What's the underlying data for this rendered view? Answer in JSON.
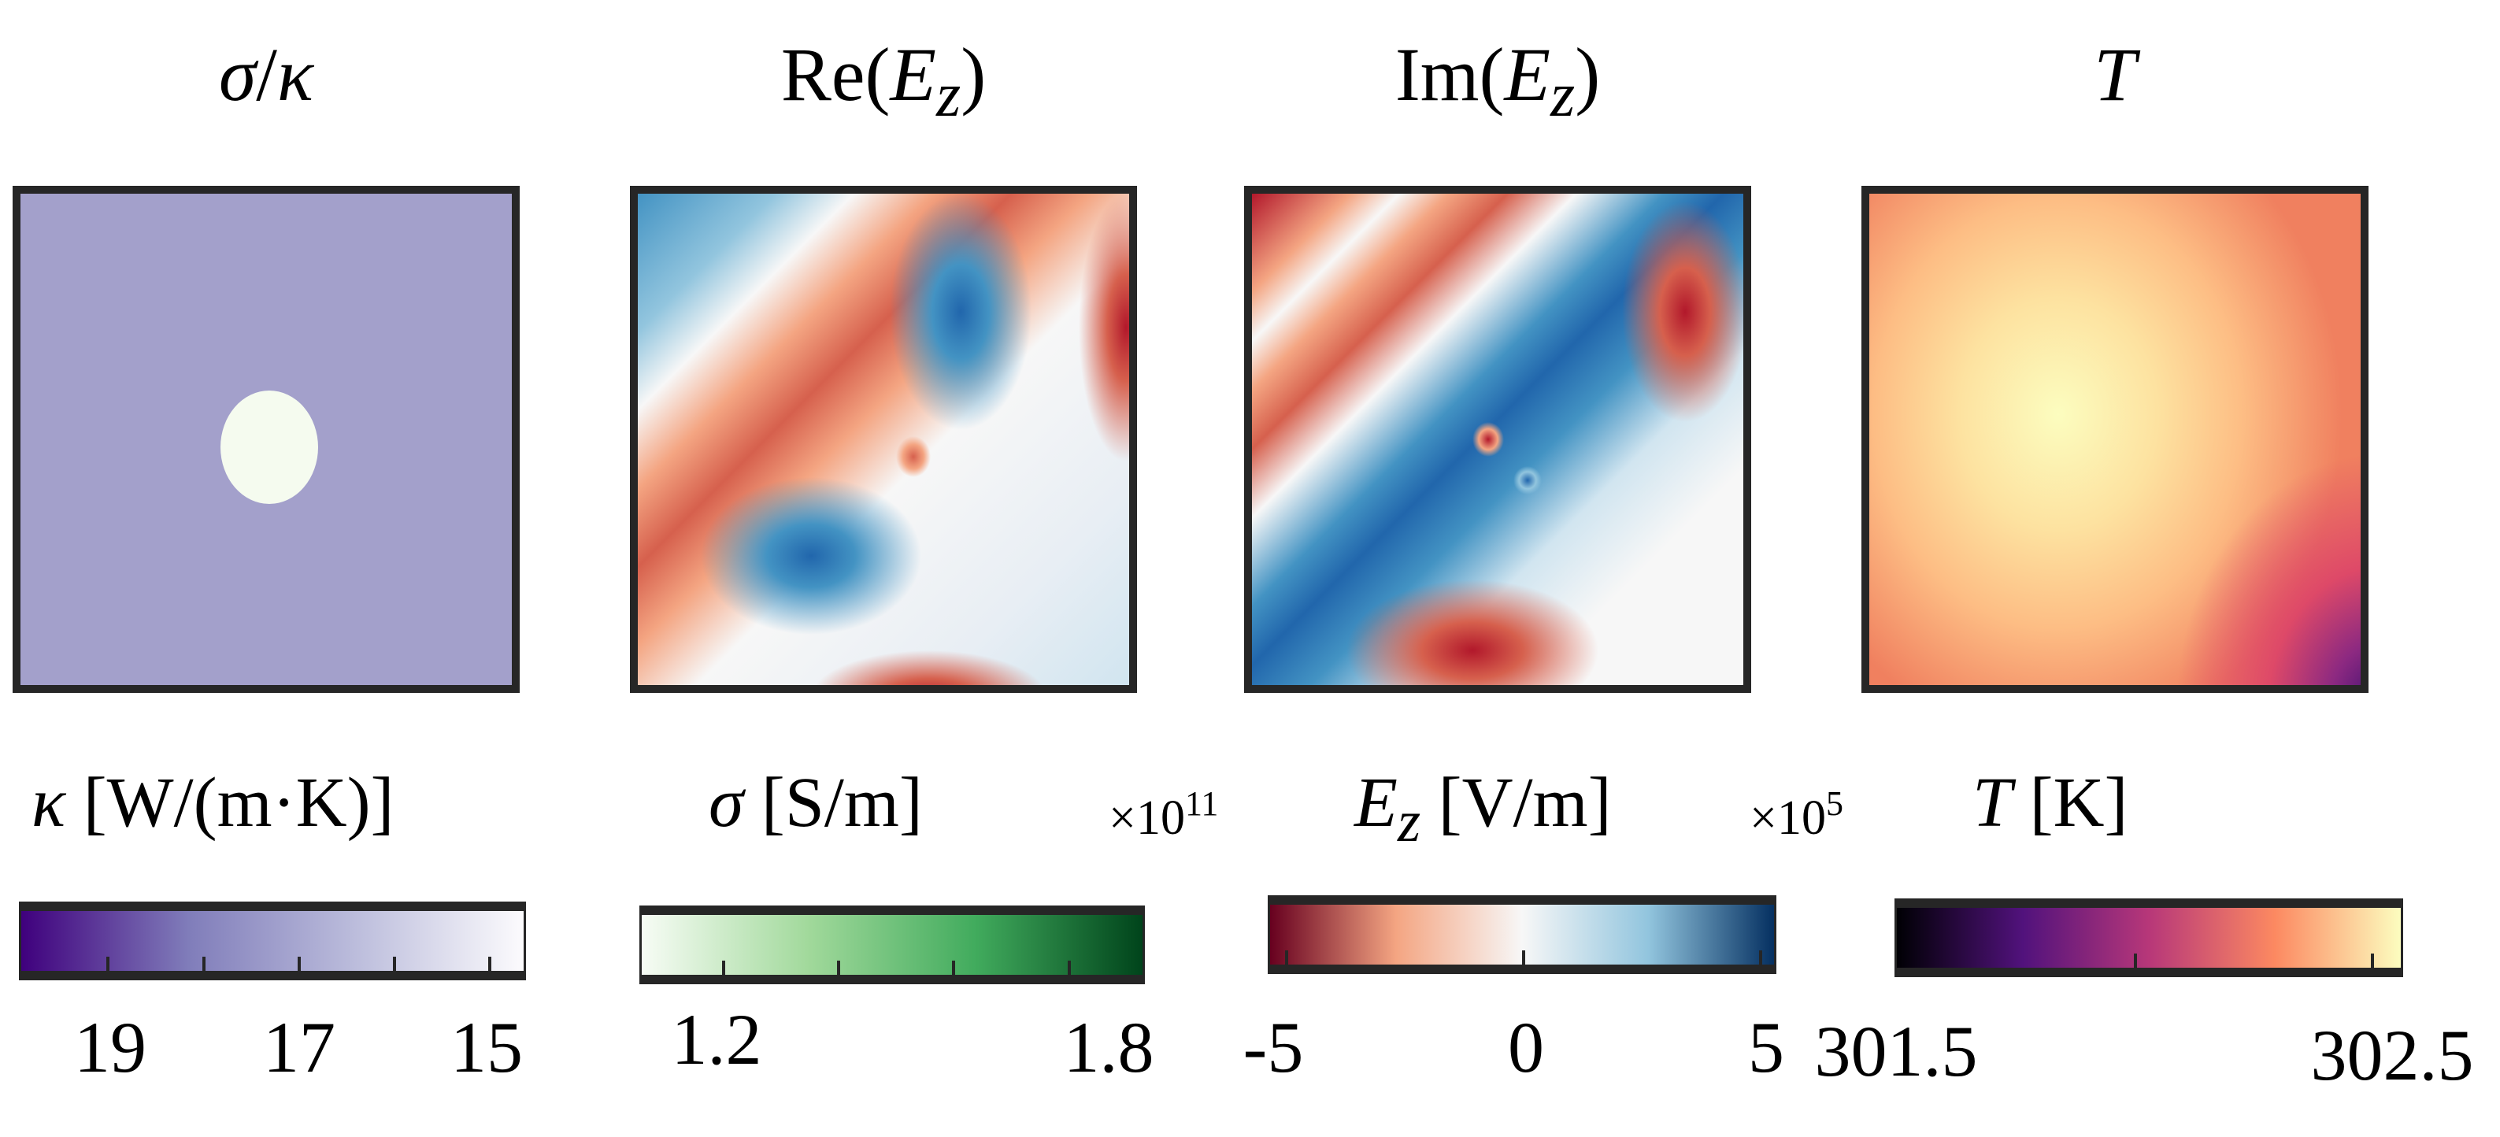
{
  "panels": [
    {
      "title_var": "σ",
      "title_sep": "/",
      "title_var2": "κ"
    },
    {
      "title_pre": "Re(",
      "title_var": "E",
      "title_sub": "z",
      "title_post": ")"
    },
    {
      "title_pre": "Im(",
      "title_var": "E",
      "title_sub": "z",
      "title_post": ")"
    },
    {
      "title_var": "T"
    }
  ],
  "chart_data": [
    {
      "type": "heatmap",
      "title": "σ/κ",
      "description_colors": {
        "background": "#a3a0cb",
        "inclusion": "#f5fbef"
      }
    },
    {
      "type": "heatmap",
      "title": "Re(Ez)"
    },
    {
      "type": "heatmap",
      "title": "Im(Ez)"
    },
    {
      "type": "heatmap",
      "title": "T"
    }
  ],
  "colorbars": [
    {
      "var": "κ",
      "unit": "[W/(m·K)]",
      "ticks": [
        "19",
        "17",
        "15"
      ],
      "range": [
        20,
        15
      ],
      "colors": [
        "#3f007d",
        "#807dba",
        "#bcbddc",
        "#fcfbfd"
      ]
    },
    {
      "var": "σ",
      "unit": "[S/m]",
      "multiplier": "×10",
      "exponent": "11",
      "ticks": [
        "1.2",
        "1.8"
      ],
      "range": [
        1.1,
        1.9
      ],
      "colors": [
        "#f7fcf5",
        "#a1d99b",
        "#41ab5d",
        "#00441b"
      ]
    },
    {
      "var": "E",
      "sub": "z",
      "unit": "[V/m]",
      "multiplier": "×10",
      "exponent": "5",
      "ticks": [
        "-5",
        "0",
        "5"
      ],
      "range": [
        -5,
        5
      ],
      "colors": [
        "#67001f",
        "#f4a582",
        "#f7f7f7",
        "#92c5de",
        "#053061"
      ]
    },
    {
      "var": "T",
      "unit": "[K]",
      "ticks": [
        "301.5",
        "302.5"
      ],
      "range": [
        301.5,
        302.5
      ],
      "colors": [
        "#000004",
        "#51127c",
        "#b73779",
        "#fc8961",
        "#fcfdbf"
      ]
    }
  ]
}
